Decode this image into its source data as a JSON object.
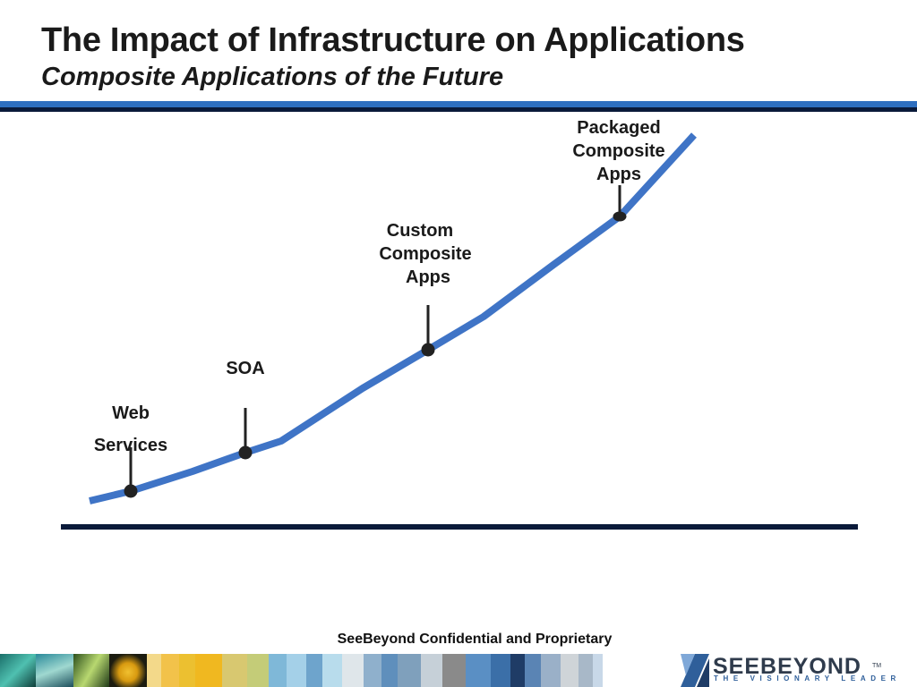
{
  "slide": {
    "title": "The Impact of Infrastructure on Applications",
    "subtitle": "Composite Applications of the Future"
  },
  "colors": {
    "rule_light": "#2e6fc0",
    "rule_dark": "#0a1a3a",
    "curve": "#3f74c6",
    "marker": "#222222",
    "baseline": "#0a1a3a"
  },
  "milestones": [
    {
      "id": "web-services",
      "lines": [
        "Web",
        "Services"
      ]
    },
    {
      "id": "soa",
      "lines": [
        "SOA"
      ]
    },
    {
      "id": "custom-composite-apps",
      "lines": [
        "Custom",
        "Composite",
        "Apps"
      ]
    },
    {
      "id": "packaged-composite-apps",
      "lines": [
        "Packaged",
        "Composite",
        "Apps"
      ]
    }
  ],
  "footer": {
    "confidential": "SeeBeyond Confidential and Proprietary",
    "logo_word": "SEEBEYOND",
    "logo_tagline": "THE VISIONARY LEADER",
    "logo_tm": "TM"
  }
}
